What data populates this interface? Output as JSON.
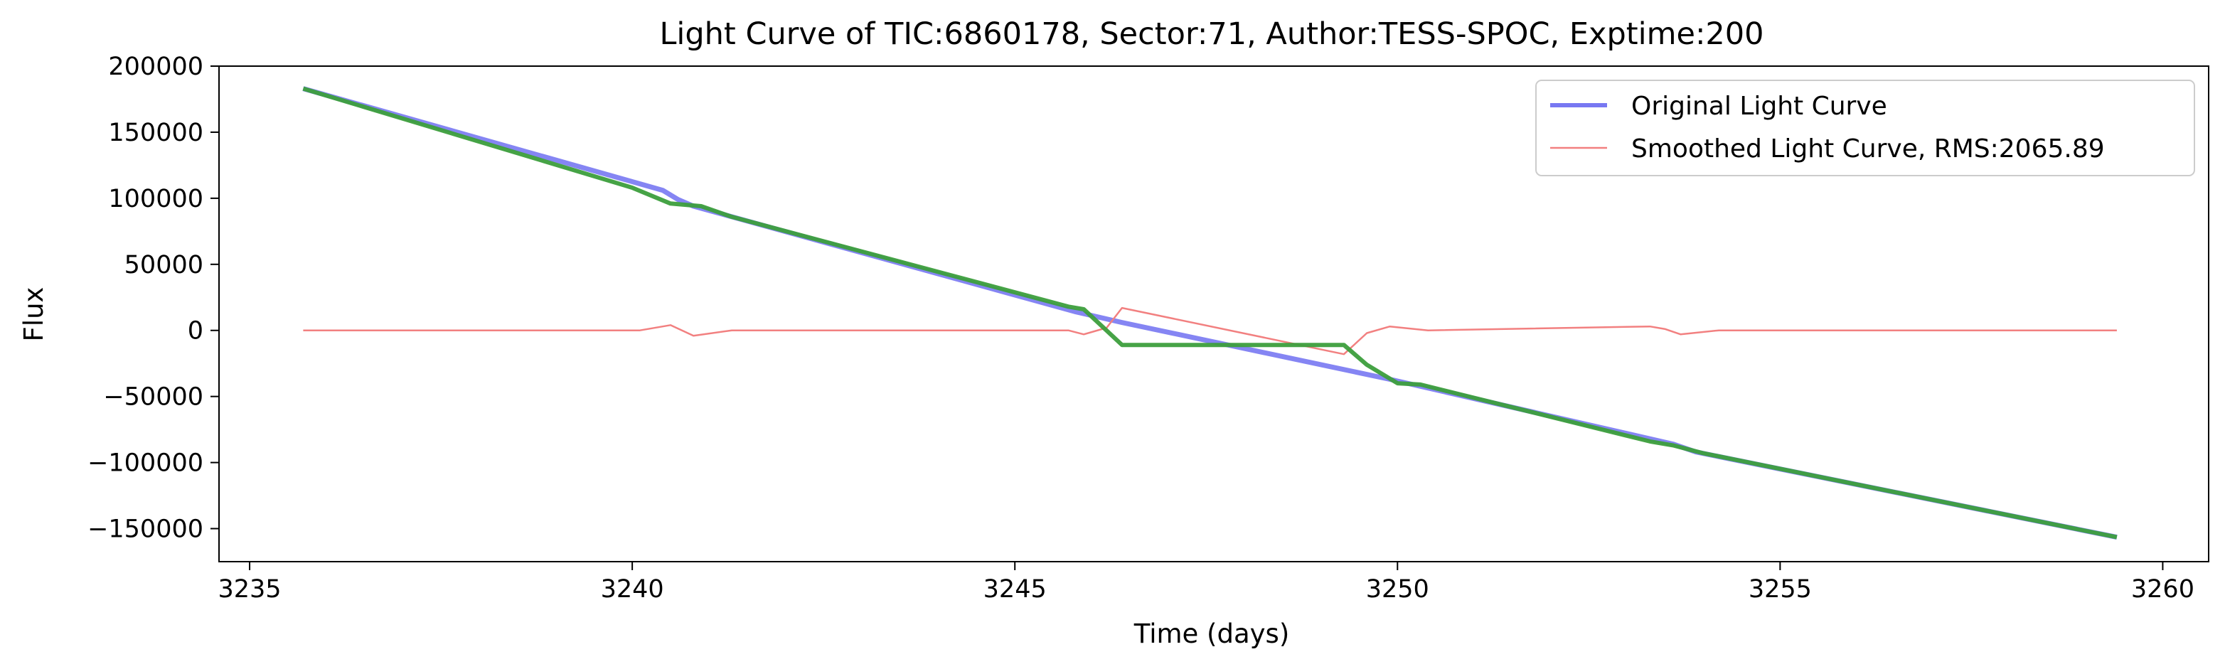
{
  "chart_data": {
    "type": "line",
    "title": "Light Curve of TIC:6860178, Sector:71, Author:TESS-SPOC, Exptime:200",
    "xlabel": "Time (days)",
    "ylabel": "Flux",
    "xlim": [
      3234.6,
      3260.6
    ],
    "ylim": [
      -175000,
      200000
    ],
    "x_ticks": [
      3235,
      3240,
      3245,
      3250,
      3255,
      3260
    ],
    "y_ticks": [
      -150000,
      -100000,
      -50000,
      0,
      50000,
      100000,
      150000,
      200000
    ],
    "x_tick_labels": [
      "3235",
      "3240",
      "3245",
      "3250",
      "3255",
      "3260"
    ],
    "y_tick_labels": [
      "−150000",
      "−100000",
      "−50000",
      "0",
      "50000",
      "100000",
      "150000",
      "200000"
    ],
    "grid": false,
    "legend_position": "top-right",
    "series": [
      {
        "name": "Original Light Curve",
        "color": "#7878f2",
        "style": "thick",
        "x": [
          3235.7,
          3240.4,
          3240.6,
          3240.8,
          3245.8,
          3246.4,
          3249.9,
          3250.2,
          3253.6,
          3253.9,
          3259.4
        ],
        "y": [
          183000,
          106000,
          99000,
          94000,
          14000,
          6000,
          -37000,
          -41000,
          -86000,
          -92000,
          -156500
        ]
      },
      {
        "name": "Smoothed Light Curve, RMS:2065.89",
        "color": "#f28080",
        "style": "thin",
        "x": [
          3235.7,
          3240.1,
          3240.5,
          3240.8,
          3241.3,
          3245.7,
          3245.9,
          3246.2,
          3246.4,
          3249.3,
          3249.6,
          3249.9,
          3250.4,
          3253.3,
          3253.5,
          3253.7,
          3254.2,
          3259.4
        ],
        "y": [
          0,
          0,
          4000,
          -4000,
          0,
          0,
          -3000,
          2000,
          17000,
          -18000,
          -2000,
          3000,
          0,
          3000,
          1000,
          -3000,
          0,
          0
        ]
      },
      {
        "name": "",
        "color": "#3c9e3c",
        "style": "medium",
        "x": [
          3235.7,
          3240.0,
          3240.5,
          3240.9,
          3241.3,
          3245.7,
          3245.9,
          3246.4,
          3249.3,
          3249.6,
          3250.0,
          3250.3,
          3253.3,
          3253.6,
          3254.0,
          3259.4
        ],
        "y": [
          183000,
          108000,
          96000,
          94000,
          86000,
          18000,
          16000,
          -11000,
          -11000,
          -26000,
          -40000,
          -41000,
          -84000,
          -87000,
          -93000,
          -156500
        ]
      }
    ]
  }
}
